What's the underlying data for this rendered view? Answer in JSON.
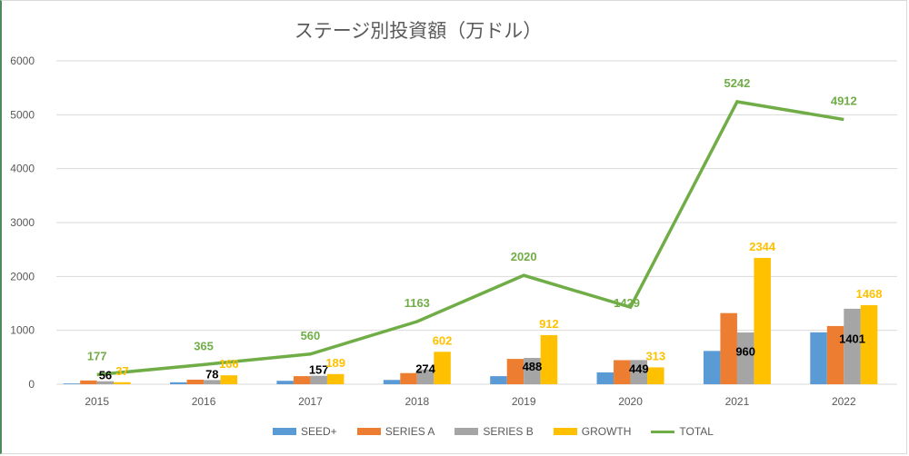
{
  "chart_data": {
    "type": "bar",
    "title": "ステージ別投資額（万ドル）",
    "xlabel": "",
    "ylabel": "",
    "ylim": [
      0,
      6000
    ],
    "yticks": [
      0,
      1000,
      2000,
      3000,
      4000,
      5000,
      6000
    ],
    "grid": true,
    "legend_position": "bottom",
    "categories": [
      "2015",
      "2016",
      "2017",
      "2018",
      "2019",
      "2020",
      "2021",
      "2022"
    ],
    "series": [
      {
        "name": "SEED+",
        "type": "bar",
        "color": "#5b9bd5",
        "values": [
          14,
          36,
          64,
          80,
          150,
          220,
          618,
          963
        ],
        "show_labels": false
      },
      {
        "name": "SERIES A",
        "type": "bar",
        "color": "#ed7d31",
        "values": [
          70,
          85,
          150,
          207,
          470,
          447,
          1320,
          1080
        ],
        "show_labels": false
      },
      {
        "name": "SERIES B",
        "type": "bar",
        "color": "#a5a5a5",
        "values": [
          56,
          78,
          157,
          274,
          488,
          449,
          960,
          1401
        ],
        "show_labels": true,
        "label_color": "#000000"
      },
      {
        "name": "GROWTH",
        "type": "bar",
        "color": "#ffc000",
        "values": [
          37,
          166,
          189,
          602,
          912,
          313,
          2344,
          1468
        ],
        "show_labels": true,
        "label_color": "#ffc000"
      },
      {
        "name": "TOTAL",
        "type": "line",
        "color": "#70ad47",
        "values": [
          177,
          365,
          560,
          1163,
          2020,
          1429,
          5242,
          4912
        ],
        "show_labels": true,
        "label_color": "#70ad47"
      }
    ]
  }
}
